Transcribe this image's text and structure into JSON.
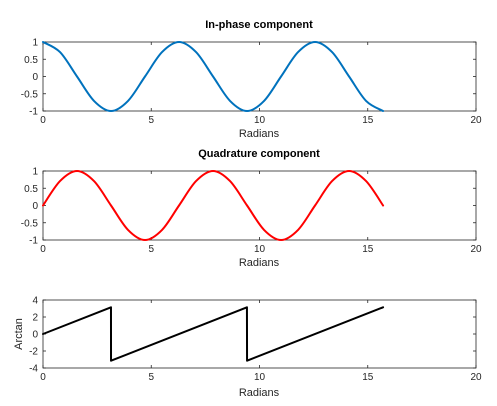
{
  "chart_data": [
    {
      "type": "line",
      "title": "In-phase component",
      "xlabel": "Radians",
      "ylabel": "",
      "xlim": [
        0,
        20
      ],
      "ylim": [
        -1,
        1
      ],
      "xticks": [
        "0",
        "5",
        "10",
        "15",
        "20"
      ],
      "yticks": [
        "1",
        "0.5",
        "0",
        "-0.5",
        "-1"
      ],
      "series": [
        {
          "color": "#0072BD",
          "x": [
            0,
            0.785,
            1.571,
            2.356,
            3.142,
            3.927,
            4.712,
            5.498,
            6.283,
            7.069,
            7.854,
            8.639,
            9.425,
            10.21,
            10.996,
            11.781,
            12.566,
            13.352,
            14.137,
            14.923,
            15.708
          ],
          "y": [
            1,
            0.707,
            0,
            -0.707,
            -1,
            -0.707,
            0,
            0.707,
            1,
            0.707,
            0,
            -0.707,
            -1,
            -0.707,
            0,
            0.707,
            1,
            0.707,
            0,
            -0.707,
            -1
          ]
        }
      ]
    },
    {
      "type": "line",
      "title": "Quadrature component",
      "xlabel": "Radians",
      "ylabel": "",
      "xlim": [
        0,
        20
      ],
      "ylim": [
        -1,
        1
      ],
      "xticks": [
        "0",
        "5",
        "10",
        "15",
        "20"
      ],
      "yticks": [
        "1",
        "0.5",
        "0",
        "-0.5",
        "-1"
      ],
      "series": [
        {
          "color": "#FF0000",
          "x": [
            0,
            0.785,
            1.571,
            2.356,
            3.142,
            3.927,
            4.712,
            5.498,
            6.283,
            7.069,
            7.854,
            8.639,
            9.425,
            10.21,
            10.996,
            11.781,
            12.566,
            13.352,
            14.137,
            14.923,
            15.708
          ],
          "y": [
            0,
            0.707,
            1,
            0.707,
            0,
            -0.707,
            -1,
            -0.707,
            0,
            0.707,
            1,
            0.707,
            0,
            -0.707,
            -1,
            -0.707,
            0,
            0.707,
            1,
            0.707,
            0
          ]
        }
      ]
    },
    {
      "type": "line",
      "title": "",
      "xlabel": "Radians",
      "ylabel": "Arctan",
      "xlim": [
        0,
        20
      ],
      "ylim": [
        -4,
        4
      ],
      "xticks": [
        "0",
        "5",
        "10",
        "15",
        "20"
      ],
      "yticks": [
        "4",
        "2",
        "0",
        "-2",
        "-4"
      ],
      "series": [
        {
          "color": "#000000",
          "x": [
            0,
            3.14,
            3.142,
            9.42,
            9.425,
            15.708
          ],
          "y": [
            0,
            3.14,
            -3.14,
            3.14,
            -3.14,
            3.14
          ]
        }
      ]
    }
  ]
}
